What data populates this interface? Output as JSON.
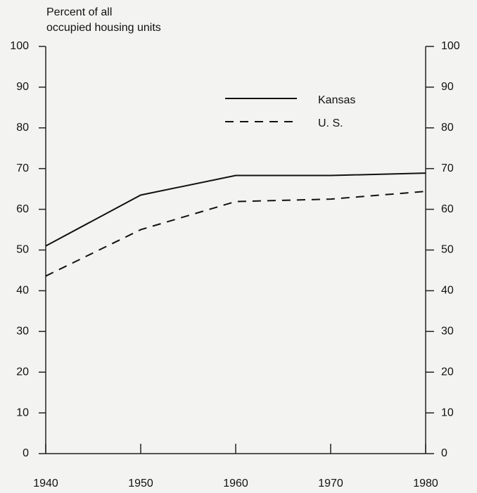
{
  "chart_data": {
    "type": "line",
    "ylabel": [
      "Percent of all",
      "occupied housing units"
    ],
    "x": [
      1940,
      1950,
      1960,
      1970,
      1980
    ],
    "series": [
      {
        "name": "Kansas",
        "color": "#111111",
        "dash": "solid",
        "values": [
          51,
          63.5,
          68.3,
          68.3,
          68.9
        ]
      },
      {
        "name": "U. S.",
        "color": "#111111",
        "dash": "dashed",
        "values": [
          43.6,
          55,
          61.9,
          62.5,
          64.4
        ]
      }
    ],
    "xlim": [
      1940,
      1980
    ],
    "xticks": [
      1940,
      1950,
      1960,
      1970,
      1980
    ],
    "ylim": [
      0,
      100
    ],
    "yticks": [
      0,
      10,
      20,
      30,
      40,
      50,
      60,
      70,
      80,
      90,
      100
    ],
    "y2lim": [
      0,
      100
    ],
    "y2ticks": [
      0,
      10,
      20,
      30,
      40,
      50,
      60,
      70,
      80,
      90,
      100
    ],
    "legend": "upper right",
    "grid": false
  }
}
